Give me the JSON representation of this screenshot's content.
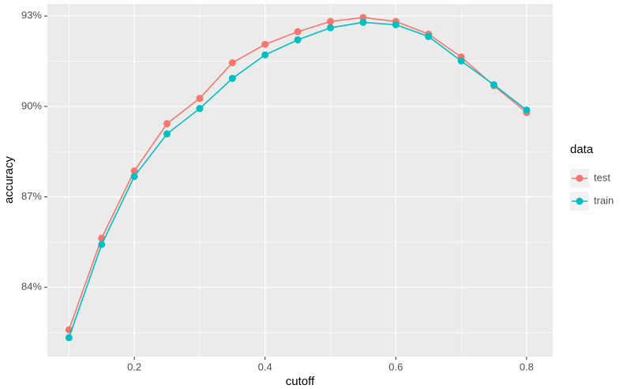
{
  "chart_data": {
    "type": "line",
    "x_label": "cutoff",
    "y_label": "accuracy",
    "x": [
      0.1,
      0.15,
      0.2,
      0.25,
      0.3,
      0.35,
      0.4,
      0.45,
      0.5,
      0.55,
      0.6,
      0.65,
      0.7,
      0.75,
      0.8
    ],
    "series": [
      {
        "name": "test",
        "color": "#f8766d",
        "values": [
          82.59,
          85.63,
          87.86,
          89.43,
          90.27,
          91.45,
          92.06,
          92.48,
          92.82,
          92.95,
          92.82,
          92.4,
          91.64,
          90.69,
          89.8
        ]
      },
      {
        "name": "train",
        "color": "#00bfc4",
        "values": [
          82.33,
          85.42,
          87.68,
          89.09,
          89.93,
          90.93,
          91.71,
          92.21,
          92.61,
          92.79,
          92.71,
          92.32,
          91.51,
          90.72,
          89.88
        ]
      }
    ],
    "legend_title": "data",
    "legend": "right",
    "xlim": [
      0.067,
      0.84
    ],
    "xticks": [
      0.2,
      0.4,
      0.6,
      0.8
    ],
    "xminor": [
      0.1,
      0.3,
      0.5,
      0.7
    ],
    "ylim": [
      81.7,
      93.4
    ],
    "yticks": [
      {
        "value": 84,
        "label": "84%"
      },
      {
        "value": 87,
        "label": "87%"
      },
      {
        "value": 90,
        "label": "90%"
      },
      {
        "value": 93,
        "label": "93%"
      }
    ],
    "yminor": [
      82.5,
      85.5,
      88.5,
      91.5
    ],
    "grid": true
  }
}
